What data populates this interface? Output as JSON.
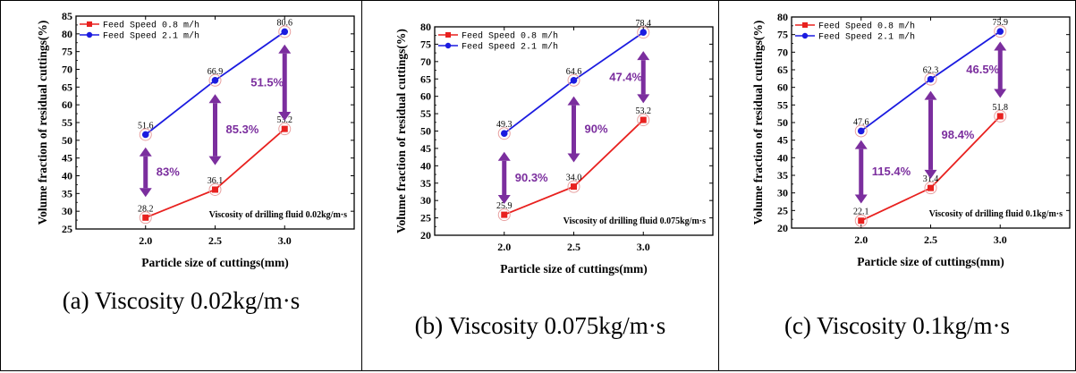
{
  "legend_labels": [
    "Feed Speed 0.8 m/h",
    "Feed Speed 2.1 m/h"
  ],
  "colors": {
    "series0": "#e8211f",
    "series1": "#1b1be0",
    "arrow": "#7b2e9e",
    "annotation": "#7b2e9e"
  },
  "chart_data": [
    {
      "type": "line",
      "xlabel": "Particle size of cuttings(mm)",
      "ylabel": "Volume fraction of residual cuttings(%)",
      "x": [
        2.0,
        2.5,
        3.0
      ],
      "x_ticks": [
        "2.0",
        "2.5",
        "3.0"
      ],
      "ylim": [
        25,
        85
      ],
      "y_ticks": [
        25,
        30,
        35,
        40,
        45,
        50,
        55,
        60,
        65,
        70,
        75,
        80,
        85
      ],
      "series": [
        {
          "name": "Feed Speed 0.8 m/h",
          "values": [
            28.2,
            36.1,
            53.2
          ],
          "labels": [
            "28.2",
            "36.1",
            "53.2"
          ]
        },
        {
          "name": "Feed Speed 2.1 m/h",
          "values": [
            51.6,
            66.9,
            80.6
          ],
          "labels": [
            "51.6",
            "66.9",
            "80.6"
          ]
        }
      ],
      "arrows": [
        {
          "x": 2.0,
          "from": 34,
          "to": 48,
          "label": "83%"
        },
        {
          "x": 2.5,
          "from": 43,
          "to": 63,
          "label": "85.3%"
        },
        {
          "x": 3.0,
          "from": 55.5,
          "to": 77,
          "label": "51.5%"
        }
      ],
      "annotation": "Viscosity of drilling fluid 0.02kg/m·s",
      "caption": "(a) Viscosity 0.02kg/m·s"
    },
    {
      "type": "line",
      "xlabel": "Particle size of cuttings(mm)",
      "ylabel": "Volume fraction of residual cuttings(%)",
      "x": [
        2.0,
        2.5,
        3.0
      ],
      "x_ticks": [
        "2.0",
        "2.5",
        "3.0"
      ],
      "ylim": [
        20,
        80
      ],
      "y_ticks": [
        20,
        25,
        30,
        35,
        40,
        45,
        50,
        55,
        60,
        65,
        70,
        75,
        80
      ],
      "series": [
        {
          "name": "Feed Speed 0.8 m/h",
          "values": [
            25.9,
            34.0,
            53.2
          ],
          "labels": [
            "25.9",
            "34.0",
            "53.2"
          ]
        },
        {
          "name": "Feed Speed 2.1 m/h",
          "values": [
            49.3,
            64.6,
            78.4
          ],
          "labels": [
            "49.3",
            "64.6",
            "78.4"
          ]
        }
      ],
      "arrows": [
        {
          "x": 2.0,
          "from": 29,
          "to": 44,
          "label": "90.3%"
        },
        {
          "x": 2.5,
          "from": 41,
          "to": 60,
          "label": "90%"
        },
        {
          "x": 3.0,
          "from": 58,
          "to": 73,
          "label": "47.4%"
        }
      ],
      "annotation": "Viscosity of drilling fluid 0.075kg/m·s",
      "caption": "(b) Viscosity 0.075kg/m·s"
    },
    {
      "type": "line",
      "xlabel": "Particle size of cuttings(mm)",
      "ylabel": "Volume fraction of residual cuttings(%)",
      "x": [
        2.0,
        2.5,
        3.0
      ],
      "x_ticks": [
        "2.0",
        "2.5",
        "3.0"
      ],
      "ylim": [
        20,
        80
      ],
      "y_ticks": [
        20,
        25,
        30,
        35,
        40,
        45,
        50,
        55,
        60,
        65,
        70,
        75,
        80
      ],
      "series": [
        {
          "name": "Feed Speed 0.8 m/h",
          "values": [
            22.1,
            31.4,
            51.8
          ],
          "labels": [
            "22.1",
            "31.4",
            "51.8"
          ]
        },
        {
          "name": "Feed Speed 2.1 m/h",
          "values": [
            47.6,
            62.3,
            75.9
          ],
          "labels": [
            "47.6",
            "62.3",
            "75.9"
          ]
        }
      ],
      "arrows": [
        {
          "x": 2.0,
          "from": 27,
          "to": 45,
          "label": "115.4%"
        },
        {
          "x": 2.5,
          "from": 34,
          "to": 59,
          "label": "98.4%"
        },
        {
          "x": 3.0,
          "from": 57,
          "to": 73,
          "label": "46.5%"
        }
      ],
      "annotation": "Viscosity of drilling fluid 0.1kg/m·s",
      "caption": "(c) Viscosity 0.1kg/m·s"
    }
  ]
}
